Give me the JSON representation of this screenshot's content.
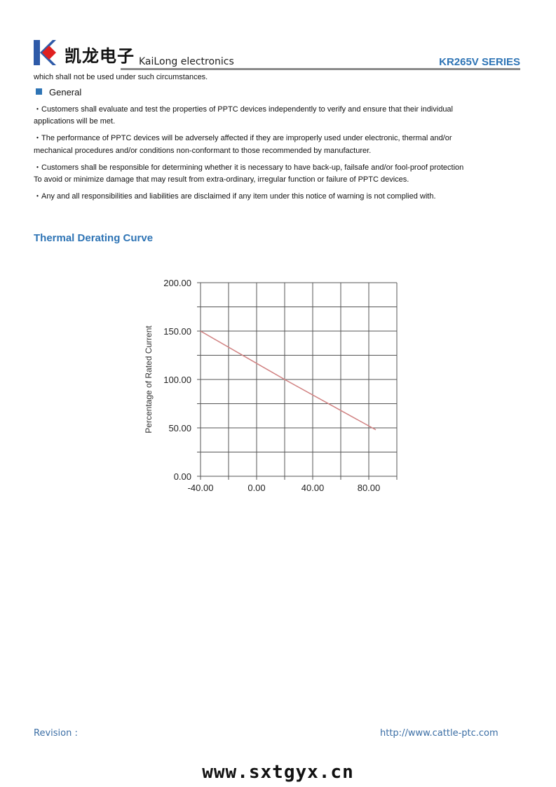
{
  "header": {
    "logo_cn": "凯龙电子",
    "logo_en": "KaiLong electronics",
    "series": "KR265V SERIES",
    "brand_colors": {
      "blue": "#2e5aa8",
      "red": "#e02020",
      "accent": "#2e74b5"
    }
  },
  "body": {
    "intro": "which shall not be used under such circumstances.",
    "general_heading": "General",
    "lines": [
      "・Customers shall evaluate and test the properties of PPTC devices independently to verify and ensure that their individual",
      "applications will be met.",
      "・The performance of PPTC devices will be adversely affected if they are improperly used under electronic, thermal and/or",
      "mechanical procedures and/or conditions non-conformant to those recommended by manufacturer.",
      "・Customers shall be responsible for determining whether it is necessary to have back-up, failsafe and/or fool-proof protection",
      "To avoid or minimize damage that may result from extra-ordinary, irregular function or failure of PPTC devices.",
      "・Any and all responsibilities and liabilities are disclaimed if any item under this notice of warning is not complied with."
    ],
    "section_title": "Thermal Derating Curve"
  },
  "chart_data": {
    "type": "line",
    "title": "",
    "xlabel": "",
    "ylabel": "Percentage of Rated Current",
    "xlim": [
      -40,
      100
    ],
    "ylim": [
      0,
      200
    ],
    "x_ticks": [
      "-40.00",
      "0.00",
      "40.00",
      "80.00"
    ],
    "y_ticks": [
      "0.00",
      "50.00",
      "100.00",
      "150.00",
      "200.00"
    ],
    "grid": true,
    "line_color": "#d08080",
    "series": [
      {
        "x": [
          -40,
          20,
          85
        ],
        "y": [
          150,
          100,
          48
        ]
      }
    ]
  },
  "footer": {
    "revision": "Revision :",
    "url": "http://www.cattle-ptc.com",
    "watermark": "www.sxtgyx.cn"
  }
}
